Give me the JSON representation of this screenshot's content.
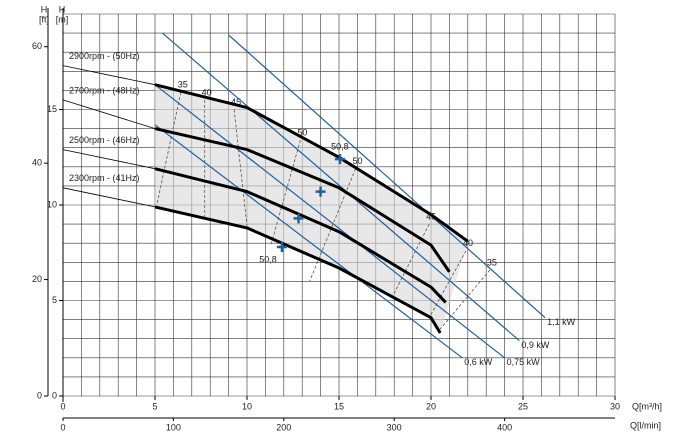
{
  "chart_data": {
    "type": "pump-curve",
    "y_label_ft": "H",
    "y_unit_ft": "[ft]",
    "y_label": "H",
    "y_unit": "[m]",
    "x_label": "Q[m³/h]",
    "x2_label": "Q[l/min]",
    "xlim": [
      0,
      30
    ],
    "xticks": [
      0,
      5,
      10,
      15,
      20,
      25,
      30
    ],
    "x2lim": [
      0,
      500
    ],
    "x2ticks": [
      0,
      100,
      200,
      300,
      400
    ],
    "ylim": [
      0,
      20
    ],
    "yticks": [
      0,
      5,
      10,
      15
    ],
    "y2lim": [
      0,
      65.6168
    ],
    "y2ticks": [
      0,
      20,
      40,
      60
    ],
    "grid": {
      "x_step": 1,
      "y_step": 1
    },
    "thick_from": 5,
    "series": [
      {
        "name": "2900rpm - (50Hz)",
        "color": "#000000",
        "x": [
          0,
          5,
          10,
          15,
          20,
          22
        ],
        "values": [
          17.3,
          16.3,
          15.1,
          12.5,
          9.5,
          8.1
        ]
      },
      {
        "name": "2700rpm - (48Hz)",
        "color": "#000000",
        "x": [
          0,
          5,
          10,
          15,
          20,
          21
        ],
        "values": [
          15.5,
          14.0,
          12.9,
          10.9,
          7.9,
          6.5
        ]
      },
      {
        "name": "2500rpm - (46Hz)",
        "color": "#000000",
        "x": [
          0,
          5,
          10,
          15,
          20,
          20.8
        ],
        "values": [
          12.9,
          11.9,
          10.7,
          8.6,
          5.7,
          4.9
        ]
      },
      {
        "name": "2300rpm - (41Hz)",
        "color": "#000000",
        "x": [
          0,
          5,
          10,
          15,
          20,
          20.5
        ],
        "values": [
          10.9,
          9.9,
          8.8,
          6.7,
          4.1,
          3.3
        ]
      }
    ],
    "power_lines": [
      {
        "name": "1,1 kW",
        "color": "#1f5fa0",
        "x": [
          9.0,
          26.2
        ],
        "values": [
          18.9,
          4.1
        ]
      },
      {
        "name": "0,9 kW",
        "color": "#1f5fa0",
        "x": [
          5.4,
          24.8
        ],
        "values": [
          19.0,
          2.9
        ]
      },
      {
        "name": "0,75 kW",
        "color": "#1f5fa0",
        "x": [
          5.0,
          24.0
        ],
        "values": [
          16.3,
          2.0
        ]
      },
      {
        "name": "0,6 kW",
        "color": "#1f5fa0",
        "x": [
          5.0,
          21.7
        ],
        "values": [
          14.2,
          2.0
        ]
      }
    ],
    "efficiency_lines": [
      {
        "label": "35",
        "x": [
          6.4,
          5.1
        ],
        "values": [
          15.9,
          10.0
        ]
      },
      {
        "label": "40",
        "x": [
          7.7,
          7.7
        ],
        "values": [
          15.5,
          9.3
        ]
      },
      {
        "label": "45",
        "x": [
          9.3,
          10.0
        ],
        "values": [
          15.0,
          8.9
        ]
      },
      {
        "label": "50",
        "x": [
          12.9,
          11.3
        ],
        "values": [
          13.4,
          7.9
        ]
      },
      {
        "label": "50",
        "x": [
          15.9,
          13.4
        ],
        "values": [
          11.9,
          6.0
        ]
      },
      {
        "label": "45",
        "x": [
          19.9,
          17.8
        ],
        "values": [
          9.0,
          5.0
        ]
      },
      {
        "label": "40",
        "x": [
          21.9,
          19.9
        ],
        "values": [
          7.6,
          4.1
        ]
      },
      {
        "label": "35",
        "x": [
          23.2,
          20.5
        ],
        "values": [
          6.6,
          3.5
        ]
      }
    ],
    "bep": [
      {
        "x": 15.05,
        "value": 12.4,
        "label": "50,8"
      },
      {
        "x": 14.0,
        "value": 10.7
      },
      {
        "x": 12.8,
        "value": 9.3
      },
      {
        "x": 11.9,
        "value": 7.8,
        "label": "50,8"
      }
    ]
  }
}
